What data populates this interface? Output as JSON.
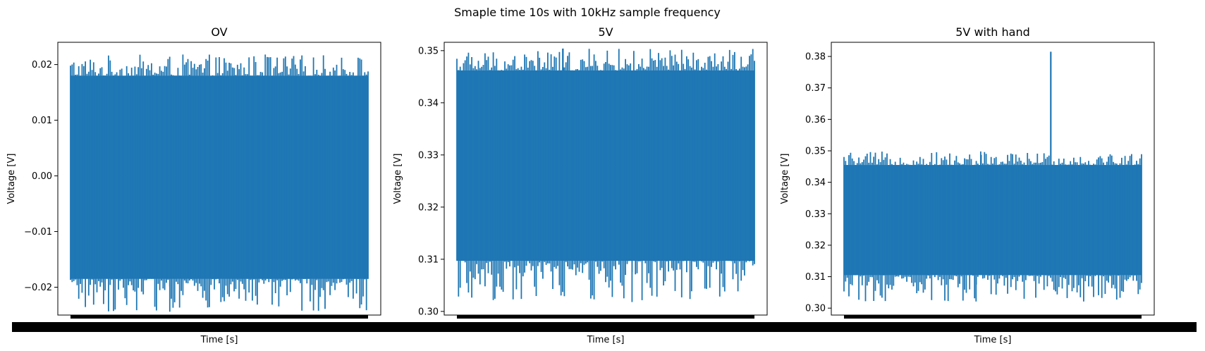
{
  "figure": {
    "suptitle": "Smaple time 10s with 10kHz sample frequency"
  },
  "colors": {
    "series": "#1f77b4",
    "axes": "#000000",
    "background": "#ffffff"
  },
  "chart_data": [
    {
      "type": "line",
      "title": "OV",
      "xlabel": "Time [s]",
      "ylabel": "Voltage [V]",
      "grid": false,
      "x_range": [
        0,
        10
      ],
      "ylim": [
        -0.025,
        0.024
      ],
      "yticks": [
        -0.02,
        -0.01,
        0.0,
        0.01,
        0.02
      ],
      "ytick_labels": [
        "−0.02",
        "−0.01",
        "0.00",
        "0.01",
        "0.02"
      ],
      "xtick_labels_note": "overlapping tick labels render as a solid black band",
      "band": {
        "center": 0.0,
        "lower": -0.0185,
        "upper": 0.018
      },
      "peak_max": 0.0218,
      "peak_min": -0.0244,
      "series": [
        {
          "values_summary": "dense noise ≈ ±0.02 V"
        }
      ]
    },
    {
      "type": "line",
      "title": "5V",
      "xlabel": "Time [s]",
      "ylabel": "Voltage [V]",
      "grid": false,
      "x_range": [
        0,
        10
      ],
      "ylim": [
        0.2993,
        0.3516
      ],
      "yticks": [
        0.3,
        0.31,
        0.32,
        0.33,
        0.34,
        0.35
      ],
      "ytick_labels": [
        "0.30",
        "0.31",
        "0.32",
        "0.33",
        "0.34",
        "0.35"
      ],
      "band": {
        "center": 0.328,
        "lower": 0.3097,
        "upper": 0.3462
      },
      "peak_max": 0.3504,
      "peak_min": 0.3018,
      "series": [
        {
          "values_summary": "dense noise ≈ 0.31–0.35 V"
        }
      ]
    },
    {
      "type": "line",
      "title": "5V with hand",
      "xlabel": "Time [s]",
      "ylabel": "Voltage [V]",
      "grid": false,
      "x_range": [
        0,
        10
      ],
      "ylim": [
        0.2978,
        0.3845
      ],
      "yticks": [
        0.3,
        0.31,
        0.32,
        0.33,
        0.34,
        0.35,
        0.36,
        0.37,
        0.38
      ],
      "ytick_labels": [
        "0.30",
        "0.31",
        "0.32",
        "0.33",
        "0.34",
        "0.35",
        "0.36",
        "0.37",
        "0.38"
      ],
      "band": {
        "center": 0.328,
        "lower": 0.3105,
        "upper": 0.3455
      },
      "peak_max": 0.3498,
      "peak_min": 0.3021,
      "spike": {
        "x_fraction": 0.695,
        "value": 0.3815
      },
      "series": [
        {
          "values_summary": "dense noise ≈ 0.31–0.35 V with a single spike to ≈ 0.381 V"
        }
      ]
    }
  ]
}
